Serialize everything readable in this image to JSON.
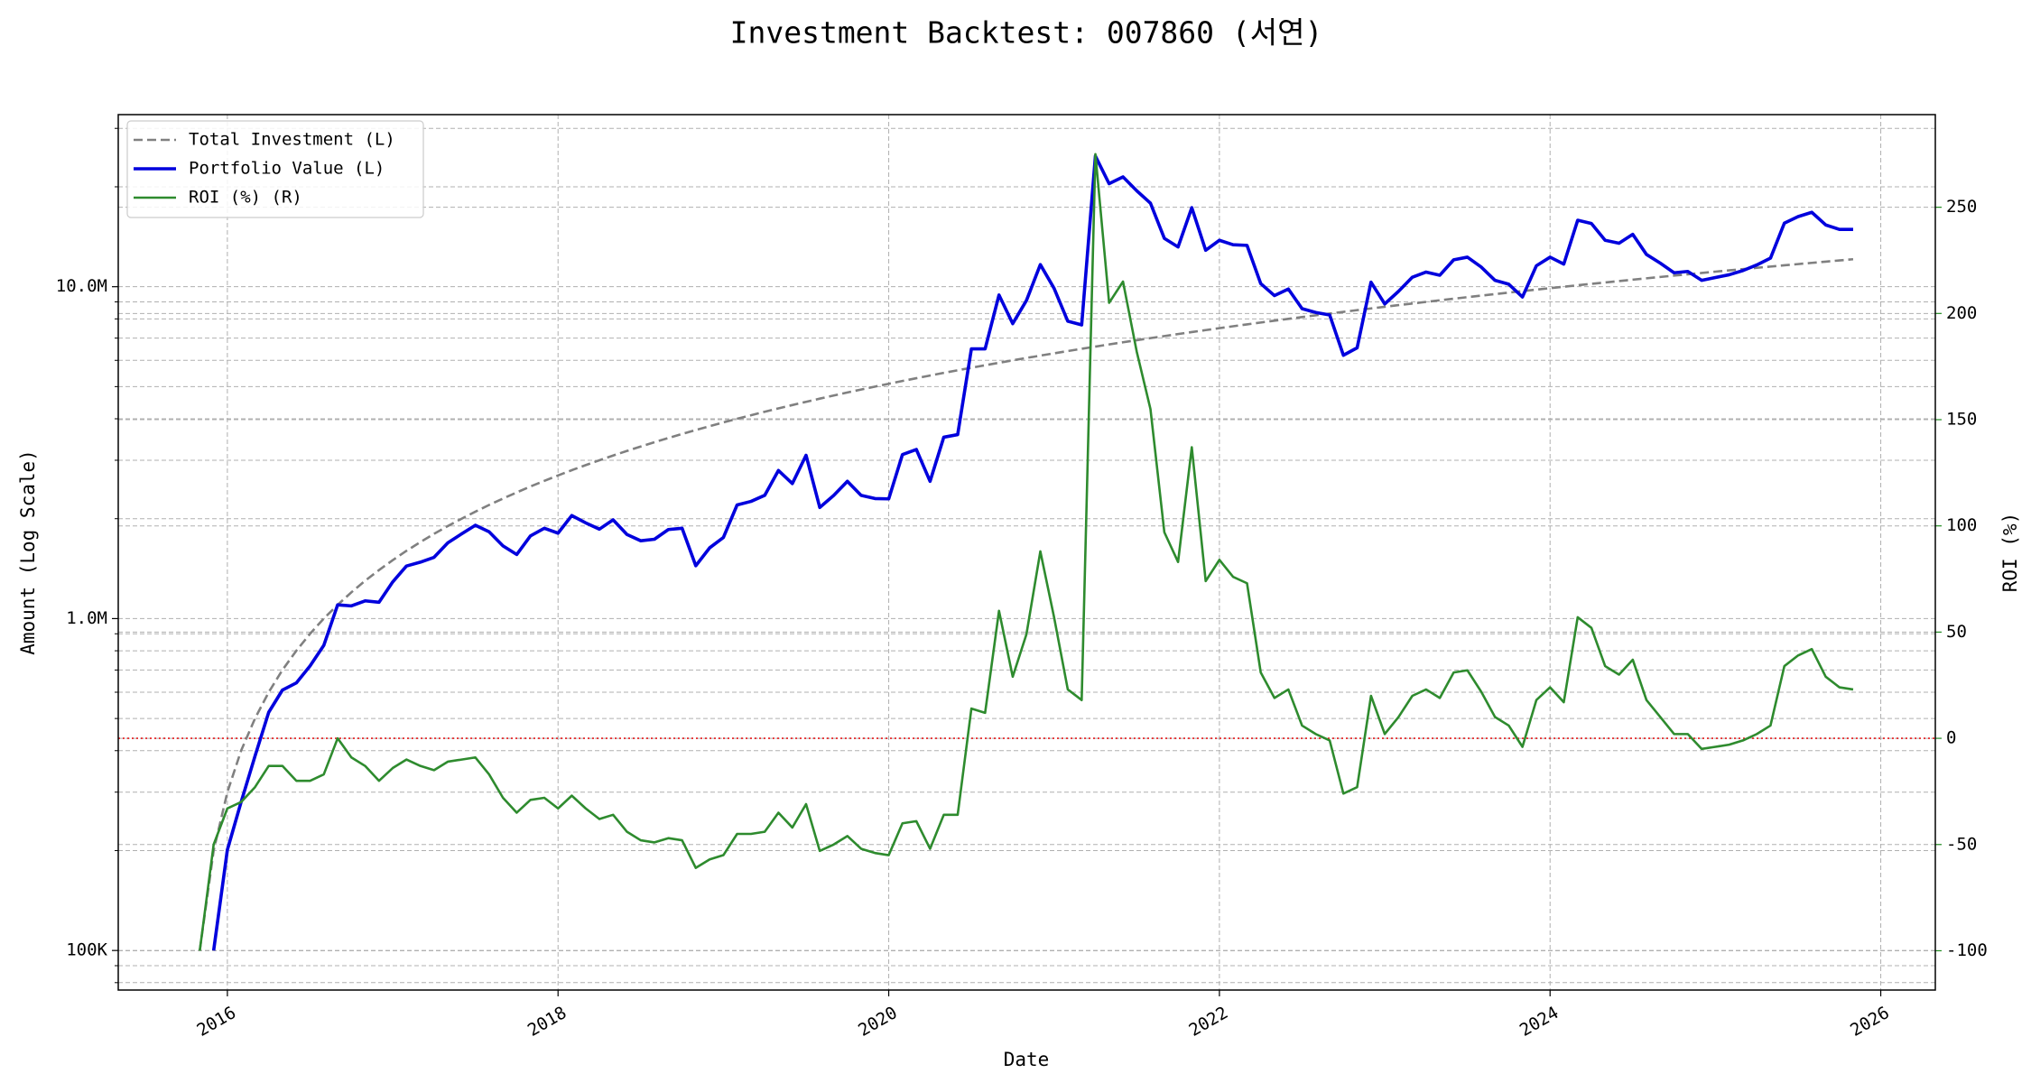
{
  "chart_data": {
    "type": "line",
    "title": "Investment Backtest: 007860 (서연)",
    "xlabel": "Date",
    "ylabel": "Amount (Log Scale)",
    "y2label": "ROI (%)",
    "xlim": [
      2015.34,
      2026.33
    ],
    "xticks": [
      2016,
      2018,
      2020,
      2022,
      2024,
      2026
    ],
    "ylim": [
      76000,
      33000000
    ],
    "yscale": "log",
    "yticks": [
      {
        "value": 100000,
        "label": "100K"
      },
      {
        "value": 1000000,
        "label": "1.0M"
      },
      {
        "value": 10000000,
        "label": "10.0M"
      }
    ],
    "yminorticks": [
      80000,
      90000,
      200000,
      300000,
      400000,
      500000,
      600000,
      700000,
      800000,
      900000,
      2000000,
      3000000,
      4000000,
      5000000,
      6000000,
      7000000,
      8000000,
      9000000,
      20000000,
      30000000
    ],
    "y2lim": [
      -118.5,
      293.6
    ],
    "y2ticks": [
      -100,
      -50,
      0,
      50,
      100,
      150,
      200,
      250
    ],
    "ycolor": "#0000cc",
    "y2color": "#228b22",
    "grid": true,
    "legend": "upper left",
    "reference_lines": [
      {
        "axis": "y2",
        "value": 0,
        "color": "#e41a1c",
        "style": "dotted"
      }
    ],
    "x": [
      2015.833,
      2015.917,
      2016,
      2016.083,
      2016.167,
      2016.25,
      2016.333,
      2016.417,
      2016.5,
      2016.583,
      2016.667,
      2016.75,
      2016.833,
      2016.917,
      2017,
      2017.083,
      2017.167,
      2017.25,
      2017.333,
      2017.417,
      2017.5,
      2017.583,
      2017.667,
      2017.75,
      2017.833,
      2017.917,
      2018,
      2018.083,
      2018.167,
      2018.25,
      2018.333,
      2018.417,
      2018.5,
      2018.583,
      2018.667,
      2018.75,
      2018.833,
      2018.917,
      2019,
      2019.083,
      2019.167,
      2019.25,
      2019.333,
      2019.417,
      2019.5,
      2019.583,
      2019.667,
      2019.75,
      2019.833,
      2019.917,
      2020,
      2020.083,
      2020.167,
      2020.25,
      2020.333,
      2020.417,
      2020.5,
      2020.583,
      2020.667,
      2020.75,
      2020.833,
      2020.917,
      2021,
      2021.083,
      2021.167,
      2021.25,
      2021.333,
      2021.417,
      2021.5,
      2021.583,
      2021.667,
      2021.75,
      2021.833,
      2021.917,
      2022,
      2022.083,
      2022.167,
      2022.25,
      2022.333,
      2022.417,
      2022.5,
      2022.583,
      2022.667,
      2022.75,
      2022.833,
      2022.917,
      2023,
      2023.083,
      2023.167,
      2023.25,
      2023.333,
      2023.417,
      2023.5,
      2023.583,
      2023.667,
      2023.75,
      2023.833,
      2023.917,
      2024,
      2024.083,
      2024.167,
      2024.25,
      2024.333,
      2024.417,
      2024.5,
      2024.583,
      2024.667,
      2024.75,
      2024.833,
      2024.917,
      2025,
      2025.083,
      2025.167,
      2025.25,
      2025.333,
      2025.417,
      2025.5,
      2025.583,
      2025.667,
      2025.75,
      2025.833
    ],
    "series": [
      {
        "name": "Total Investment (L)",
        "color": "#808080",
        "axis": "y",
        "style": "dashed",
        "width": 2.6,
        "values": [
          100000,
          200000,
          300000,
          400000,
          500000,
          600000,
          700000,
          800000,
          900000,
          1000000,
          1100000,
          1200000,
          1300000,
          1400000,
          1500000,
          1600000,
          1700000,
          1800000,
          1900000,
          2000000,
          2100000,
          2200000,
          2300000,
          2400000,
          2500000,
          2600000,
          2700000,
          2800000,
          2900000,
          3000000,
          3100000,
          3200000,
          3300000,
          3400000,
          3500000,
          3600000,
          3700000,
          3800000,
          3900000,
          4000000,
          4100000,
          4200000,
          4300000,
          4400000,
          4500000,
          4600000,
          4700000,
          4800000,
          4900000,
          5000000,
          5100000,
          5200000,
          5300000,
          5400000,
          5500000,
          5600000,
          5700000,
          5800000,
          5900000,
          6000000,
          6100000,
          6200000,
          6300000,
          6400000,
          6500000,
          6600000,
          6700000,
          6800000,
          6900000,
          7000000,
          7100000,
          7200000,
          7300000,
          7400000,
          7500000,
          7600000,
          7700000,
          7800000,
          7900000,
          8000000,
          8100000,
          8200000,
          8300000,
          8400000,
          8500000,
          8600000,
          8700000,
          8800000,
          8900000,
          9000000,
          9100000,
          9200000,
          9300000,
          9400000,
          9500000,
          9600000,
          9700000,
          9800000,
          9900000,
          10000000,
          10100000,
          10200000,
          10300000,
          10400000,
          10500000,
          10600000,
          10700000,
          10800000,
          10900000,
          11000000,
          11100000,
          11200000,
          11300000,
          11400000,
          11500000,
          11600000,
          11700000,
          11800000,
          11900000,
          12000000,
          12100000
        ]
      },
      {
        "name": "Portfolio Value (L)",
        "color": "#0000dd",
        "axis": "y",
        "style": "solid",
        "width": 3.6,
        "values": [
          null,
          100000,
          201000,
          280000,
          385000,
          522000,
          609000,
          640000,
          720000,
          830000,
          1100000,
          1092000,
          1131000,
          1120000,
          1290000,
          1440000,
          1479000,
          1530000,
          1691000,
          1800000,
          1911000,
          1826000,
          1656000,
          1560000,
          1775000,
          1872000,
          1809000,
          2044000,
          1943000,
          1860000,
          1984000,
          1792000,
          1716000,
          1734000,
          1855000,
          1872000,
          1443000,
          1634000,
          1755000,
          2200000,
          2255000,
          2352000,
          2795000,
          2552000,
          3105000,
          2162000,
          2350000,
          2592000,
          2352000,
          2300000,
          2295000,
          3120000,
          3233000,
          2592000,
          3520000,
          3584000,
          6498000,
          6496000,
          9440000,
          7740000,
          9089000,
          11656000,
          9891000,
          7872000,
          7670000,
          24750000,
          20435000,
          21420000,
          19458000,
          17850000,
          13987000,
          13176000,
          17301000,
          12876000,
          13800000,
          13376000,
          13321000,
          10218000,
          9401000,
          9840000,
          8586000,
          8364000,
          8217000,
          6216000,
          6545000,
          10320000,
          8874000,
          9680000,
          10680000,
          11070000,
          10829000,
          12052000,
          12276000,
          11468000,
          10450000,
          10176000,
          9312000,
          11564000,
          12276000,
          11700000,
          15857000,
          15504000,
          13802000,
          13520000,
          14385000,
          12508000,
          11770000,
          11016000,
          11118000,
          10450000,
          10656000,
          10864000,
          11187000,
          11628000,
          12190000,
          15544000,
          16263000,
          16756000,
          15351000,
          14880000,
          14883000
        ]
      },
      {
        "name": "ROI (%) (R)",
        "color": "#2e8b2e",
        "axis": "y2",
        "style": "solid",
        "width": 2.6,
        "values": [
          -100,
          -50,
          -33,
          -30,
          -23,
          -13,
          -13,
          -20,
          -20,
          -17,
          0,
          -9,
          -13,
          -20,
          -14,
          -10,
          -13,
          -15,
          -11,
          -10,
          -9,
          -17,
          -28,
          -35,
          -29,
          -28,
          -33,
          -27,
          -33,
          -38,
          -36,
          -44,
          -48,
          -49,
          -47,
          -48,
          -61,
          -57,
          -55,
          -45,
          -45,
          -44,
          -35,
          -42,
          -31,
          -53,
          -50,
          -46,
          -52,
          -54,
          -55,
          -40,
          -39,
          -52,
          -36,
          -36,
          14,
          12,
          60,
          29,
          49,
          88,
          57,
          23,
          18,
          275,
          205,
          215,
          182,
          155,
          97,
          83,
          137,
          74,
          84,
          76,
          73,
          31,
          19,
          23,
          6,
          2,
          -1,
          -26,
          -23,
          20,
          2,
          10,
          20,
          23,
          19,
          31,
          32,
          22,
          10,
          6,
          -4,
          18,
          24,
          17,
          57,
          52,
          34,
          30,
          37,
          18,
          10,
          2,
          2,
          -5,
          -4,
          -3,
          -1,
          2,
          6,
          34,
          39,
          42,
          29,
          24,
          23
        ]
      }
    ]
  }
}
